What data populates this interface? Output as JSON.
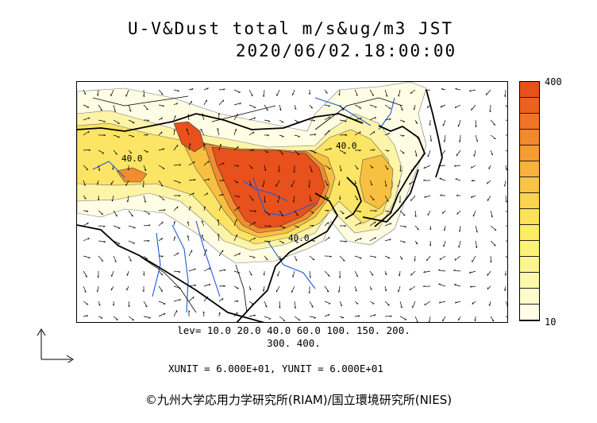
{
  "title_line1": "U-V&Dust total m/s&ug/m3 JST",
  "title_line2": "2020/06/02.18:00:00",
  "colorbar": {
    "max_label": "400",
    "min_label": "10",
    "colors": [
      "#e8501c",
      "#ec6020",
      "#f07428",
      "#f28830",
      "#f49c36",
      "#f6b23e",
      "#f8c446",
      "#fad44e",
      "#fbe258",
      "#fcec66",
      "#fdf278",
      "#fdf690",
      "#fef8ac",
      "#fefbcc",
      "#fffde4"
    ]
  },
  "contour_labels": [
    "40.0",
    "40.0",
    "40.0"
  ],
  "levels_line1": "lev= 10.0 20.0 40.0 60.0 100. 150. 200.",
  "levels_line2": "300. 400.",
  "units_text": "XUNIT = 6.000E+01, YUNIT = 6.000E+01",
  "copyright": "©九州大学応用力学研究所(RIAM)/国立環境研究所(NIES)"
}
